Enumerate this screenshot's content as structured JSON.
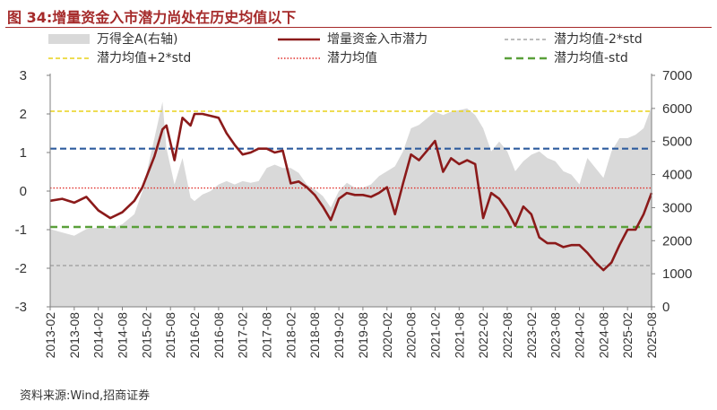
{
  "title": "图 34:增量资金入市潜力尚处在历史均值以下",
  "source": "资料来源:Wind,招商证券",
  "colors": {
    "title": "#a52a2a",
    "area": "#d9d9d9",
    "potential": "#8b1a1a",
    "mean": "#e0302c",
    "plus2std": "#e8d21a",
    "plus1std": "#2e5c9e",
    "minus1std": "#5aa03a",
    "minus2std": "#a6a6a6"
  },
  "legend": {
    "area": "万得全A(右轴)",
    "potential": "增量资金入市潜力",
    "minus2std": "潜力均值-2*std",
    "plus2std": "潜力均值+2*std",
    "mean": "潜力均值",
    "minus1std": "潜力均值-std"
  },
  "chart_data": {
    "type": "line",
    "x_ticks": [
      "2013-02",
      "2013-08",
      "2014-02",
      "2014-08",
      "2015-02",
      "2015-08",
      "2016-02",
      "2016-08",
      "2017-02",
      "2017-08",
      "2018-02",
      "2018-08",
      "2019-02",
      "2019-08",
      "2020-02",
      "2020-08",
      "2021-02",
      "2021-08",
      "2022-02",
      "2022-08",
      "2023-02",
      "2023-08",
      "2024-02",
      "2024-08",
      "2025-02",
      "2025-08"
    ],
    "y_left": {
      "lim": [
        -3,
        3
      ],
      "ticks": [
        3,
        2,
        1,
        0,
        -1,
        -2,
        -3
      ]
    },
    "y_right": {
      "lim": [
        0,
        7000
      ],
      "ticks": [
        7000,
        6000,
        5000,
        4000,
        3000,
        2000,
        1000,
        0
      ]
    },
    "reference_lines": {
      "plus2std": 2.07,
      "plus1std": 1.1,
      "mean": 0.08,
      "minus1std": -0.93,
      "minus2std": -1.93
    },
    "x": [
      "2013-02",
      "2013-05",
      "2013-08",
      "2013-11",
      "2014-02",
      "2014-05",
      "2014-08",
      "2014-11",
      "2015-01",
      "2015-04",
      "2015-06",
      "2015-07",
      "2015-09",
      "2015-11",
      "2016-01",
      "2016-02",
      "2016-04",
      "2016-06",
      "2016-08",
      "2016-10",
      "2016-12",
      "2017-02",
      "2017-04",
      "2017-06",
      "2017-08",
      "2017-10",
      "2017-12",
      "2018-02",
      "2018-04",
      "2018-06",
      "2018-08",
      "2018-10",
      "2018-12",
      "2019-02",
      "2019-04",
      "2019-06",
      "2019-08",
      "2019-10",
      "2019-12",
      "2020-02",
      "2020-04",
      "2020-06",
      "2020-08",
      "2020-10",
      "2020-12",
      "2021-02",
      "2021-04",
      "2021-06",
      "2021-08",
      "2021-10",
      "2021-12",
      "2022-02",
      "2022-04",
      "2022-06",
      "2022-08",
      "2022-10",
      "2022-12",
      "2023-02",
      "2023-04",
      "2023-06",
      "2023-08",
      "2023-10",
      "2023-12",
      "2024-02",
      "2024-04",
      "2024-06",
      "2024-08",
      "2024-10",
      "2024-12",
      "2025-02",
      "2025-04",
      "2025-06",
      "2025-08"
    ],
    "series": [
      {
        "name": "增量资金入市潜力",
        "axis": "left",
        "values": [
          -0.25,
          -0.2,
          -0.3,
          -0.15,
          -0.5,
          -0.7,
          -0.55,
          -0.25,
          0.1,
          0.9,
          1.6,
          1.7,
          0.8,
          1.9,
          1.7,
          2.0,
          2.0,
          1.95,
          1.9,
          1.5,
          1.2,
          0.95,
          1.0,
          1.1,
          1.1,
          1.0,
          1.05,
          0.2,
          0.25,
          0.1,
          -0.1,
          -0.4,
          -0.75,
          -0.2,
          -0.05,
          -0.1,
          -0.1,
          -0.15,
          -0.05,
          0.1,
          -0.6,
          0.2,
          0.95,
          0.8,
          1.05,
          1.3,
          0.5,
          0.85,
          0.7,
          0.8,
          0.7,
          -0.7,
          -0.05,
          -0.2,
          -0.5,
          -0.9,
          -0.4,
          -0.6,
          -1.2,
          -1.35,
          -1.35,
          -1.45,
          -1.4,
          -1.4,
          -1.6,
          -1.85,
          -2.05,
          -1.85,
          -1.4,
          -1.0,
          -1.0,
          -0.6,
          -0.05
        ]
      },
      {
        "name": "万得全A(右轴)",
        "axis": "right",
        "values": [
          2350,
          2250,
          2150,
          2350,
          2400,
          2350,
          2500,
          2800,
          3500,
          5100,
          6200,
          4800,
          3700,
          4500,
          3300,
          3200,
          3400,
          3500,
          3700,
          3800,
          3700,
          3800,
          3750,
          3800,
          4200,
          4300,
          4200,
          4200,
          4050,
          3700,
          3550,
          3350,
          3000,
          3500,
          3750,
          3600,
          3600,
          3700,
          3950,
          4100,
          4250,
          4700,
          5400,
          5500,
          5700,
          5900,
          5800,
          5900,
          5950,
          6000,
          5800,
          5400,
          4700,
          5000,
          4700,
          4100,
          4400,
          4600,
          4700,
          4500,
          4400,
          4100,
          4000,
          3700,
          4500,
          4200,
          3900,
          4700,
          5100,
          5100,
          5200,
          5400,
          6050
        ]
      }
    ],
    "source": "资料来源:Wind,招商证券"
  }
}
